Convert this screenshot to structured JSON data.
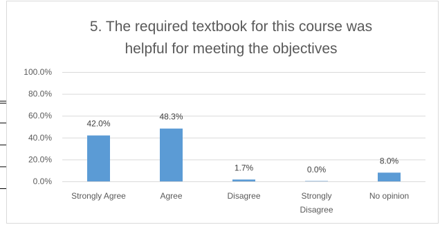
{
  "chart_data": {
    "type": "bar",
    "title": "5. The required textbook for this course was helpful for meeting the objectives",
    "title_lines": [
      "5. The required textbook for this course was",
      "helpful for meeting the objectives"
    ],
    "categories": [
      "Strongly Agree",
      "Agree",
      "Disagree",
      "Strongly Disagree",
      "No opinion"
    ],
    "category_lines": [
      [
        "Strongly Agree"
      ],
      [
        "Agree"
      ],
      [
        "Disagree"
      ],
      [
        "Strongly",
        "Disagree"
      ],
      [
        "No opinion"
      ]
    ],
    "values": [
      42.0,
      48.3,
      1.7,
      0.0,
      8.0
    ],
    "data_labels": [
      "42.0%",
      "48.3%",
      "1.7%",
      "0.0%",
      "8.0%"
    ],
    "y_ticks": [
      0,
      20,
      40,
      60,
      80,
      100
    ],
    "y_tick_labels": [
      "0.0%",
      "20.0%",
      "40.0%",
      "60.0%",
      "80.0%",
      "100.0%"
    ],
    "ylim": [
      0,
      100
    ],
    "grid": true,
    "legend": "none",
    "bar_color": "#5b9bd5",
    "xlabel": "",
    "ylabel": ""
  }
}
